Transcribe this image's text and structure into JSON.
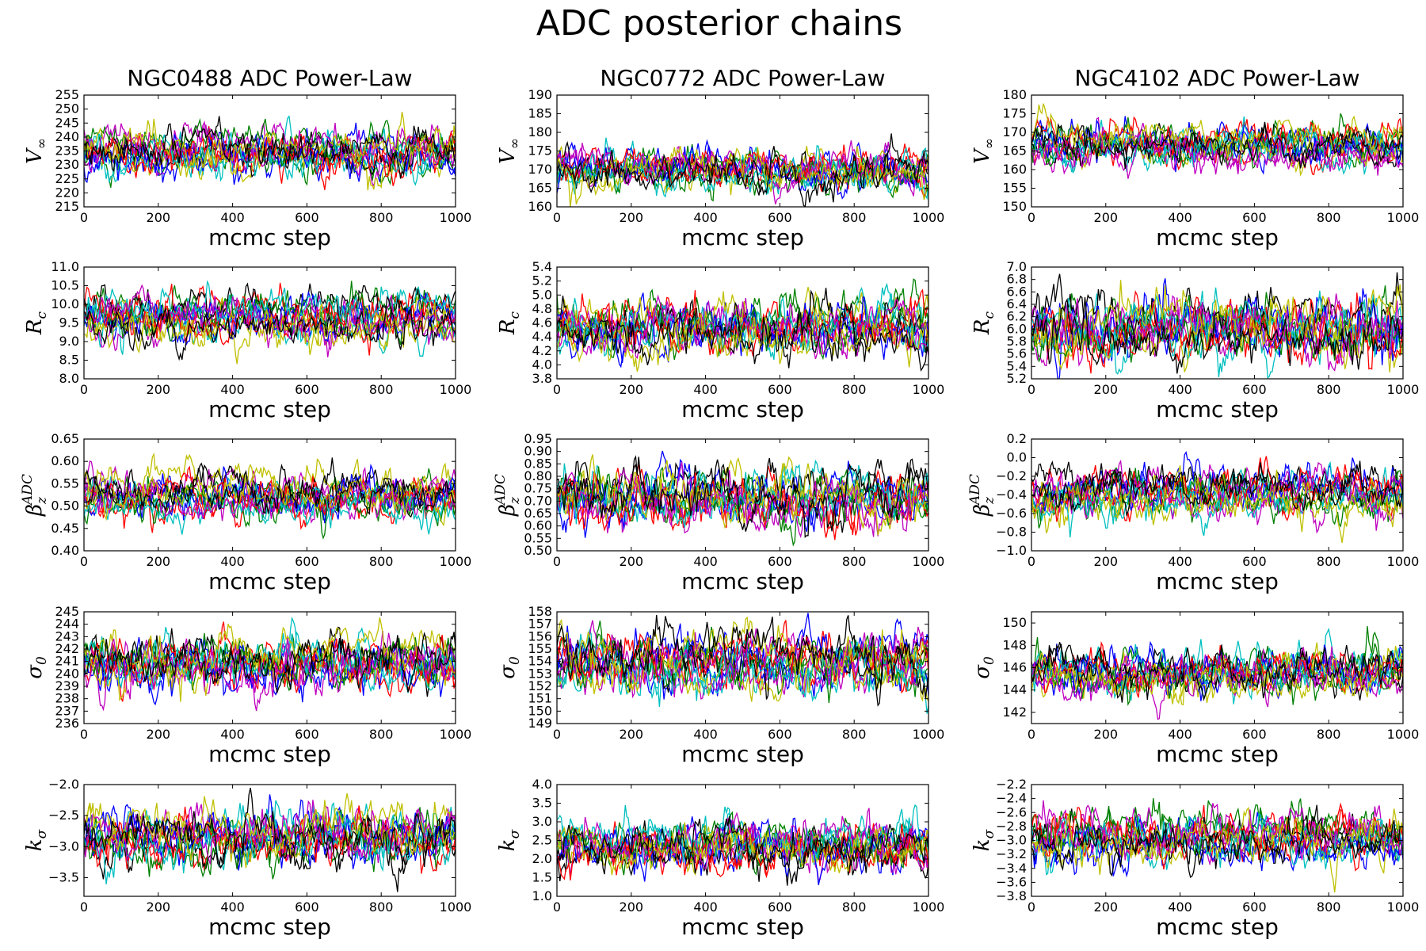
{
  "chart_data": {
    "type": "line",
    "title": "ADC posterior chains",
    "columns": [
      {
        "title": "NGC0488 ADC Power-Law"
      },
      {
        "title": "NGC0772 ADC Power-Law"
      },
      {
        "title": "NGC4102 ADC Power-Law"
      }
    ],
    "series_colors": [
      "#0000ff",
      "#008000",
      "#ff0000",
      "#00bfbf",
      "#bf00bf",
      "#bfbf00",
      "#000000"
    ],
    "xlabel": "mcmc step",
    "xlim": [
      0,
      1000
    ],
    "xticks": [
      0,
      200,
      400,
      600,
      800,
      1000
    ],
    "xtick_labels": [
      "0",
      "200",
      "400",
      "600",
      "800",
      "1000"
    ],
    "panels": [
      {
        "column": 0,
        "row": 0,
        "ylabel": {
          "main": "V",
          "sub": "∞"
        },
        "ylim": [
          215,
          255
        ],
        "yticks": [
          215,
          220,
          225,
          230,
          235,
          240,
          245,
          250,
          255
        ],
        "ytick_labels": [
          "215",
          "220",
          "225",
          "230",
          "235",
          "240",
          "245",
          "250",
          "255"
        ],
        "center": 234,
        "spread": 4.5
      },
      {
        "column": 1,
        "row": 0,
        "ylabel": {
          "main": "V",
          "sub": "∞"
        },
        "ylim": [
          160,
          190
        ],
        "yticks": [
          160,
          165,
          170,
          175,
          180,
          185,
          190
        ],
        "ytick_labels": [
          "160",
          "165",
          "170",
          "175",
          "180",
          "185",
          "190"
        ],
        "center": 171,
        "spread": 3.2
      },
      {
        "column": 2,
        "row": 0,
        "ylabel": {
          "main": "V",
          "sub": "∞"
        },
        "ylim": [
          150,
          180
        ],
        "yticks": [
          150,
          155,
          160,
          165,
          170,
          175,
          180
        ],
        "ytick_labels": [
          "150",
          "155",
          "160",
          "165",
          "170",
          "175",
          "180"
        ],
        "center": 166,
        "spread": 3.2
      },
      {
        "column": 0,
        "row": 1,
        "ylabel": {
          "main": "R",
          "sub": "c"
        },
        "ylim": [
          8.0,
          11.0
        ],
        "yticks": [
          8.0,
          8.5,
          9.0,
          9.5,
          10.0,
          10.5,
          11.0
        ],
        "ytick_labels": [
          "8.0",
          "8.5",
          "9.0",
          "9.5",
          "10.0",
          "10.5",
          "11.0"
        ],
        "center": 9.6,
        "spread": 0.35
      },
      {
        "column": 1,
        "row": 1,
        "ylabel": {
          "main": "R",
          "sub": "c"
        },
        "ylim": [
          3.8,
          5.4
        ],
        "yticks": [
          3.8,
          4.0,
          4.2,
          4.4,
          4.6,
          4.8,
          5.0,
          5.2,
          5.4
        ],
        "ytick_labels": [
          "3.8",
          "4.0",
          "4.2",
          "4.4",
          "4.6",
          "4.8",
          "5.0",
          "5.2",
          "5.4"
        ],
        "center": 4.5,
        "spread": 0.22
      },
      {
        "column": 2,
        "row": 1,
        "ylabel": {
          "main": "R",
          "sub": "c"
        },
        "ylim": [
          5.2,
          7.0
        ],
        "yticks": [
          5.2,
          5.4,
          5.6,
          5.8,
          6.0,
          6.2,
          6.4,
          6.6,
          6.8,
          7.0
        ],
        "ytick_labels": [
          "5.2",
          "5.4",
          "5.6",
          "5.8",
          "6.0",
          "6.2",
          "6.4",
          "6.6",
          "6.8",
          "7.0"
        ],
        "center": 6.0,
        "spread": 0.28
      },
      {
        "column": 0,
        "row": 2,
        "ylabel": {
          "main": "β",
          "sub": "z",
          "sup": "ADC"
        },
        "ylim": [
          0.4,
          0.65
        ],
        "yticks": [
          0.4,
          0.45,
          0.5,
          0.55,
          0.6,
          0.65
        ],
        "ytick_labels": [
          "0.40",
          "0.45",
          "0.50",
          "0.55",
          "0.60",
          "0.65"
        ],
        "center": 0.53,
        "spread": 0.028
      },
      {
        "column": 1,
        "row": 2,
        "ylabel": {
          "main": "β",
          "sub": "z",
          "sup": "ADC"
        },
        "ylim": [
          0.5,
          0.95
        ],
        "yticks": [
          0.5,
          0.55,
          0.6,
          0.65,
          0.7,
          0.75,
          0.8,
          0.85,
          0.9,
          0.95
        ],
        "ytick_labels": [
          "0.50",
          "0.55",
          "0.60",
          "0.65",
          "0.70",
          "0.75",
          "0.80",
          "0.85",
          "0.90",
          "0.95"
        ],
        "center": 0.72,
        "spread": 0.065
      },
      {
        "column": 2,
        "row": 2,
        "ylabel": {
          "main": "β",
          "sub": "z",
          "sup": "ADC"
        },
        "ylim": [
          -1.0,
          0.2
        ],
        "yticks": [
          -1.0,
          -0.8,
          -0.6,
          -0.4,
          -0.2,
          0.0,
          0.2
        ],
        "ytick_labels": [
          "−1.0",
          "−0.8",
          "−0.6",
          "−0.4",
          "−0.2",
          "0.0",
          "0.2"
        ],
        "center": -0.38,
        "spread": 0.14
      },
      {
        "column": 0,
        "row": 3,
        "ylabel": {
          "main": "σ",
          "sub": "0"
        },
        "ylim": [
          236,
          245
        ],
        "yticks": [
          236,
          237,
          238,
          239,
          240,
          241,
          242,
          243,
          244,
          245
        ],
        "ytick_labels": [
          "236",
          "237",
          "238",
          "239",
          "240",
          "241",
          "242",
          "243",
          "244",
          "245"
        ],
        "center": 240.6,
        "spread": 1.2
      },
      {
        "column": 1,
        "row": 3,
        "ylabel": {
          "main": "σ",
          "sub": "0"
        },
        "ylim": [
          149,
          158
        ],
        "yticks": [
          149,
          150,
          151,
          152,
          153,
          154,
          155,
          156,
          157,
          158
        ],
        "ytick_labels": [
          "149",
          "150",
          "151",
          "152",
          "153",
          "154",
          "155",
          "156",
          "157",
          "158"
        ],
        "center": 153.9,
        "spread": 1.3
      },
      {
        "column": 2,
        "row": 3,
        "ylabel": {
          "main": "σ",
          "sub": "0"
        },
        "ylim": [
          141,
          151
        ],
        "yticks": [
          142,
          144,
          146,
          148,
          150
        ],
        "ytick_labels": [
          "142",
          "144",
          "146",
          "148",
          "150"
        ],
        "center": 145.8,
        "spread": 1.2
      },
      {
        "column": 0,
        "row": 4,
        "ylabel": {
          "main": "k",
          "sub": "σ"
        },
        "ylim": [
          -3.8,
          -2.0
        ],
        "yticks": [
          -3.5,
          -3.0,
          -2.5,
          -2.0
        ],
        "ytick_labels": [
          "−3.5",
          "−3.0",
          "−2.5",
          "−2.0"
        ],
        "center": -2.9,
        "spread": 0.25
      },
      {
        "column": 1,
        "row": 4,
        "ylabel": {
          "main": "k",
          "sub": "σ"
        },
        "ylim": [
          1.0,
          4.0
        ],
        "yticks": [
          1.0,
          1.5,
          2.0,
          2.5,
          3.0,
          3.5,
          4.0
        ],
        "ytick_labels": [
          "1.0",
          "1.5",
          "2.0",
          "2.5",
          "3.0",
          "3.5",
          "4.0"
        ],
        "center": 2.3,
        "spread": 0.38
      },
      {
        "column": 2,
        "row": 4,
        "ylabel": {
          "main": "k",
          "sub": "σ"
        },
        "ylim": [
          -3.8,
          -2.2
        ],
        "yticks": [
          -3.8,
          -3.6,
          -3.4,
          -3.2,
          -3.0,
          -2.8,
          -2.6,
          -2.4,
          -2.2
        ],
        "ytick_labels": [
          "−3.8",
          "−3.6",
          "−3.4",
          "−3.2",
          "−3.0",
          "−2.8",
          "−2.6",
          "−2.4",
          "−2.2"
        ],
        "center": -3.0,
        "spread": 0.2
      }
    ]
  }
}
